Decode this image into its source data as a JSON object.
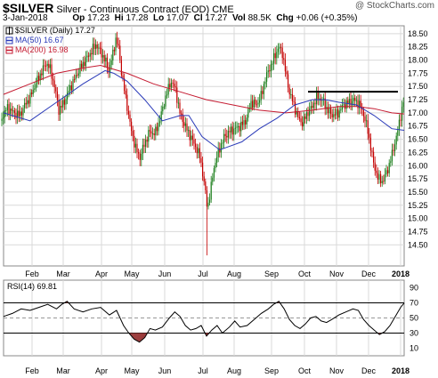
{
  "header": {
    "symbol": "$SILVER",
    "description": "Silver - Continuous Contract (EOD)",
    "exchange": "CME",
    "copyright": "@ StockCharts.com",
    "date": "3-Jan-2018",
    "quote": {
      "op_label": "Op",
      "op": "17.23",
      "hi_label": "Hi",
      "hi": "17.28",
      "lo_label": "Lo",
      "lo": "17.07",
      "cl_label": "Cl",
      "cl": "17.27",
      "vol_label": "Vol",
      "vol": "88.5K",
      "chg_label": "Chg",
      "chg": "+0.06 (+0.35%)"
    }
  },
  "colors": {
    "up": "#1a7d1a",
    "down": "#c40000",
    "ma50": "#2a3ab8",
    "ma200": "#c41a30",
    "rsi": "#000000",
    "rsi_high": "#9a3a3a",
    "rsi_low": "#9a3a3a",
    "grid": "#d9d9d9",
    "resistance": "#000000"
  },
  "chart_data": [
    {
      "type": "candlestick",
      "legend": [
        "$SILVER (Daily) 17.27",
        "MA(50) 16.67",
        "MA(200) 16.98"
      ],
      "legend_placement": "top-left",
      "ylim": [
        14.1,
        18.65
      ],
      "y_ticks": [
        14.5,
        14.75,
        15.0,
        15.25,
        15.5,
        15.75,
        16.0,
        16.25,
        16.5,
        16.75,
        17.0,
        17.25,
        17.5,
        17.75,
        18.0,
        18.25,
        18.5
      ],
      "x_ticks": [
        "Feb",
        "Mar",
        "Apr",
        "May",
        "Jun",
        "Jul",
        "Aug",
        "Sep",
        "Oct",
        "Nov",
        "Dec",
        "2018"
      ],
      "grid": true,
      "price_path": [
        [
          0,
          16.85
        ],
        [
          8,
          17.1
        ],
        [
          16,
          17.0
        ],
        [
          22,
          16.95
        ],
        [
          28,
          17.15
        ],
        [
          34,
          17.3
        ],
        [
          40,
          17.55
        ],
        [
          46,
          17.75
        ],
        [
          52,
          17.95
        ],
        [
          56,
          17.85
        ],
        [
          62,
          17.45
        ],
        [
          66,
          17.05
        ],
        [
          72,
          17.2
        ],
        [
          78,
          17.45
        ],
        [
          84,
          17.65
        ],
        [
          90,
          17.85
        ],
        [
          96,
          18.0
        ],
        [
          102,
          18.15
        ],
        [
          108,
          18.3
        ],
        [
          113,
          18.15
        ],
        [
          118,
          18.0
        ],
        [
          122,
          17.8
        ],
        [
          126,
          18.05
        ],
        [
          130,
          18.4
        ],
        [
          133,
          18.25
        ],
        [
          137,
          17.7
        ],
        [
          142,
          17.2
        ],
        [
          147,
          16.7
        ],
        [
          152,
          16.35
        ],
        [
          157,
          16.15
        ],
        [
          162,
          16.4
        ],
        [
          168,
          16.65
        ],
        [
          174,
          16.6
        ],
        [
          180,
          16.9
        ],
        [
          186,
          17.3
        ],
        [
          192,
          17.6
        ],
        [
          197,
          17.45
        ],
        [
          202,
          17.0
        ],
        [
          208,
          16.75
        ],
        [
          214,
          16.55
        ],
        [
          220,
          16.35
        ],
        [
          225,
          16.15
        ],
        [
          229,
          15.7
        ],
        [
          233,
          15.2
        ],
        [
          236,
          15.45
        ],
        [
          240,
          15.95
        ],
        [
          246,
          16.3
        ],
        [
          252,
          16.55
        ],
        [
          258,
          16.65
        ],
        [
          264,
          16.7
        ],
        [
          270,
          16.75
        ],
        [
          276,
          16.85
        ],
        [
          282,
          17.2
        ],
        [
          288,
          17.15
        ],
        [
          294,
          17.35
        ],
        [
          298,
          17.65
        ],
        [
          303,
          17.85
        ],
        [
          308,
          18.05
        ],
        [
          313,
          18.25
        ],
        [
          317,
          18.15
        ],
        [
          321,
          17.75
        ],
        [
          325,
          17.4
        ],
        [
          330,
          17.15
        ],
        [
          335,
          16.9
        ],
        [
          340,
          16.8
        ],
        [
          345,
          17.0
        ],
        [
          350,
          17.1
        ],
        [
          356,
          17.3
        ],
        [
          362,
          17.25
        ],
        [
          368,
          17.05
        ],
        [
          374,
          16.95
        ],
        [
          380,
          17.0
        ],
        [
          386,
          17.15
        ],
        [
          392,
          17.2
        ],
        [
          398,
          17.25
        ],
        [
          404,
          17.15
        ],
        [
          408,
          17.0
        ],
        [
          412,
          16.75
        ],
        [
          416,
          16.4
        ],
        [
          420,
          16.0
        ],
        [
          425,
          15.75
        ],
        [
          430,
          15.7
        ],
        [
          436,
          15.95
        ],
        [
          441,
          16.25
        ],
        [
          446,
          16.6
        ],
        [
          450,
          16.95
        ],
        [
          454,
          17.27
        ]
      ],
      "ma50_path": [
        [
          0,
          17.0
        ],
        [
          30,
          16.85
        ],
        [
          60,
          17.2
        ],
        [
          90,
          17.55
        ],
        [
          115,
          17.8
        ],
        [
          125,
          17.75
        ],
        [
          140,
          17.6
        ],
        [
          160,
          17.25
        ],
        [
          180,
          16.85
        ],
        [
          200,
          16.95
        ],
        [
          210,
          16.95
        ],
        [
          225,
          16.55
        ],
        [
          245,
          16.3
        ],
        [
          270,
          16.45
        ],
        [
          290,
          16.7
        ],
        [
          310,
          16.9
        ],
        [
          330,
          17.15
        ],
        [
          350,
          17.25
        ],
        [
          365,
          17.25
        ],
        [
          380,
          17.2
        ],
        [
          400,
          17.15
        ],
        [
          420,
          16.95
        ],
        [
          440,
          16.7
        ],
        [
          454,
          16.67
        ]
      ],
      "ma200_path": [
        [
          0,
          17.35
        ],
        [
          30,
          17.55
        ],
        [
          60,
          17.75
        ],
        [
          90,
          17.85
        ],
        [
          110,
          17.9
        ],
        [
          140,
          17.75
        ],
        [
          170,
          17.55
        ],
        [
          200,
          17.4
        ],
        [
          230,
          17.25
        ],
        [
          260,
          17.15
        ],
        [
          290,
          17.05
        ],
        [
          320,
          17.0
        ],
        [
          350,
          17.05
        ],
        [
          380,
          17.12
        ],
        [
          400,
          17.12
        ],
        [
          420,
          17.08
        ],
        [
          440,
          17.0
        ],
        [
          454,
          16.98
        ]
      ],
      "annotations": [
        {
          "type": "resistance",
          "x_from": 346,
          "x_to": 447,
          "y": 17.4
        }
      ]
    },
    {
      "type": "line",
      "legend": [
        "RSI(14) 69.81"
      ],
      "ylim": [
        0,
        100
      ],
      "y_ticks": [
        10,
        30,
        50,
        70,
        90
      ],
      "ref_lines": [
        30,
        50,
        70
      ],
      "x_ticks": [
        "Feb",
        "Mar",
        "Apr",
        "May",
        "Jun",
        "Jul",
        "Aug",
        "Sep",
        "Oct",
        "Nov",
        "Dec",
        "2018"
      ],
      "rsi_path": [
        [
          0,
          52
        ],
        [
          10,
          56
        ],
        [
          20,
          62
        ],
        [
          30,
          60
        ],
        [
          40,
          64
        ],
        [
          50,
          68
        ],
        [
          60,
          62
        ],
        [
          66,
          68
        ],
        [
          72,
          72
        ],
        [
          80,
          62
        ],
        [
          90,
          58
        ],
        [
          100,
          62
        ],
        [
          110,
          64
        ],
        [
          120,
          54
        ],
        [
          128,
          60
        ],
        [
          136,
          40
        ],
        [
          142,
          30
        ],
        [
          148,
          22
        ],
        [
          154,
          18
        ],
        [
          160,
          24
        ],
        [
          166,
          36
        ],
        [
          172,
          34
        ],
        [
          180,
          38
        ],
        [
          188,
          50
        ],
        [
          194,
          58
        ],
        [
          200,
          52
        ],
        [
          206,
          40
        ],
        [
          212,
          34
        ],
        [
          218,
          36
        ],
        [
          224,
          40
        ],
        [
          230,
          26
        ],
        [
          236,
          34
        ],
        [
          242,
          40
        ],
        [
          248,
          30
        ],
        [
          256,
          38
        ],
        [
          262,
          46
        ],
        [
          268,
          38
        ],
        [
          276,
          40
        ],
        [
          284,
          48
        ],
        [
          292,
          56
        ],
        [
          300,
          62
        ],
        [
          306,
          68
        ],
        [
          312,
          72
        ],
        [
          318,
          62
        ],
        [
          324,
          48
        ],
        [
          330,
          40
        ],
        [
          336,
          36
        ],
        [
          342,
          42
        ],
        [
          348,
          50
        ],
        [
          354,
          52
        ],
        [
          360,
          46
        ],
        [
          366,
          44
        ],
        [
          372,
          48
        ],
        [
          380,
          54
        ],
        [
          388,
          58
        ],
        [
          396,
          62
        ],
        [
          402,
          60
        ],
        [
          408,
          48
        ],
        [
          414,
          40
        ],
        [
          420,
          34
        ],
        [
          426,
          28
        ],
        [
          432,
          32
        ],
        [
          438,
          40
        ],
        [
          444,
          52
        ],
        [
          450,
          64
        ],
        [
          454,
          69.81
        ]
      ]
    }
  ]
}
